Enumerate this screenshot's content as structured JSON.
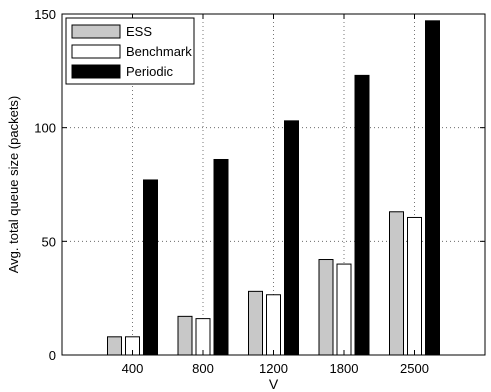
{
  "chart_data": {
    "type": "bar",
    "xlabel": "V",
    "ylabel": "Avg. total queue size (packets)",
    "categories": [
      "400",
      "800",
      "1200",
      "1800",
      "2500"
    ],
    "ylim": [
      0,
      150
    ],
    "yticks": [
      0,
      50,
      100,
      150
    ],
    "grid": true,
    "legend_position": "top-left",
    "series": [
      {
        "name": "ESS",
        "color": "#c8c8c8",
        "values": [
          8,
          17,
          28,
          42,
          63
        ]
      },
      {
        "name": "Benchmark",
        "color": "#ffffff",
        "values": [
          8,
          16,
          26.5,
          40,
          60.5
        ]
      },
      {
        "name": "Periodic",
        "color": "#000000",
        "values": [
          77,
          86,
          103,
          123,
          147
        ]
      }
    ]
  }
}
